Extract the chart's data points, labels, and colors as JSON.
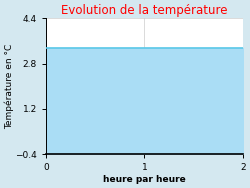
{
  "title": "Evolution de la température",
  "title_color": "#ff0000",
  "xlabel": "heure par heure",
  "ylabel": "Température en °C",
  "xlim": [
    0,
    2
  ],
  "ylim": [
    -0.4,
    4.4
  ],
  "xticks": [
    0,
    1,
    2
  ],
  "yticks": [
    -0.4,
    1.2,
    2.8,
    4.4
  ],
  "line_y": 3.35,
  "line_color": "#5bc8e8",
  "fill_color": "#aaddf5",
  "background_color": "#d4e8f0",
  "plot_bg_color": "#ffffff",
  "line_width": 1.2,
  "x_data": [
    0,
    2
  ],
  "y_data": [
    3.35,
    3.35
  ],
  "title_fontsize": 8.5,
  "label_fontsize": 6.5,
  "tick_fontsize": 6.5
}
